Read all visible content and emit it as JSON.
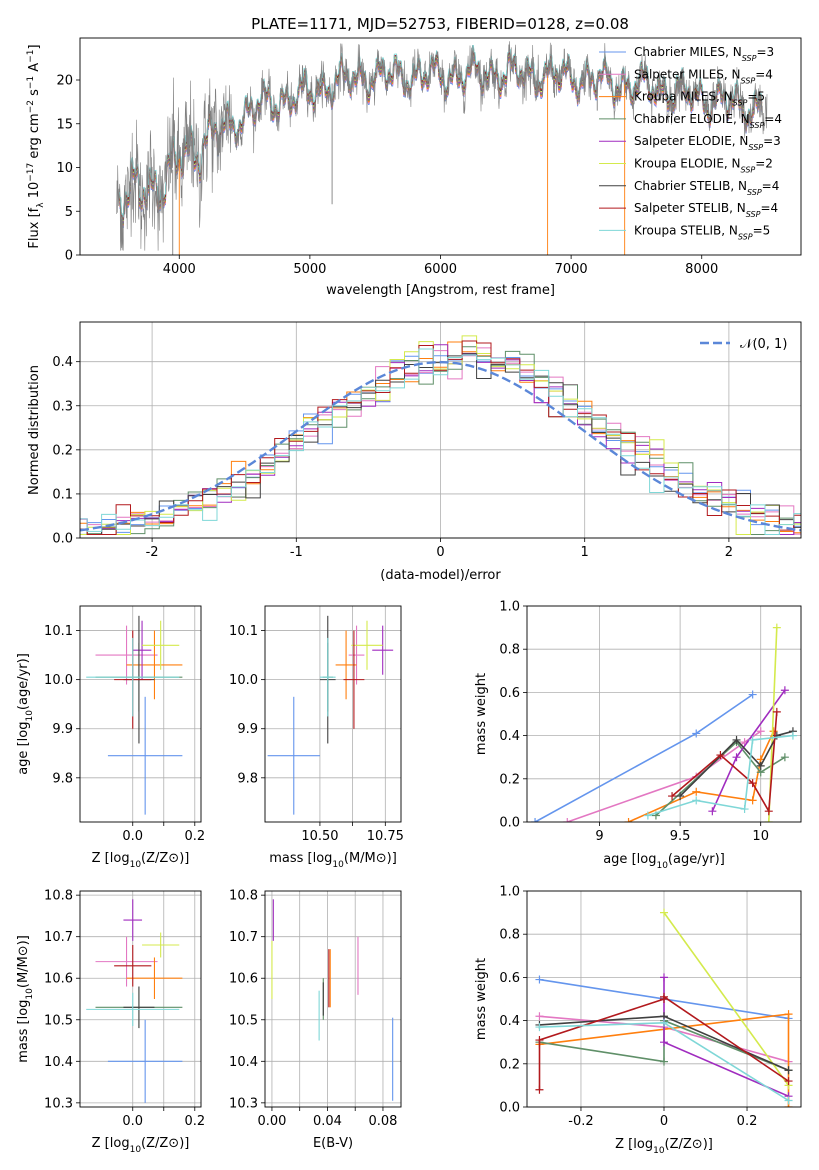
{
  "figure_title": "PLATE=1171, MJD=52753, FIBERID=0128, z=0.08",
  "colors": {
    "Chabrier MILES": "#6495ed",
    "Salpeter MILES": "#e377c2",
    "Kroupa MILES": "#ff7f0e",
    "Chabrier ELODIE": "#5f8f68",
    "Salpeter ELODIE": "#a02cbf",
    "Kroupa ELODIE": "#d4ea4c",
    "Chabrier STELIB": "#404040",
    "Salpeter STELIB": "#b2191d",
    "Kroupa STELIB": "#7fd7d7",
    "data": "#808080",
    "normal": "#5b87d8"
  },
  "chart_data": [
    {
      "id": "spectrum",
      "type": "line",
      "title": "PLATE=1171, MJD=52753, FIBERID=0128, z=0.08",
      "xlabel": "wavelength [Angstrom, rest frame]",
      "ylabel": "Flux [f_λ 10^-17 erg cm^-2 s^-1 A^-1]",
      "xlim": [
        3240,
        8760
      ],
      "ylim": [
        0,
        24.8
      ],
      "xticks": [
        4000,
        5000,
        6000,
        7000,
        8000
      ],
      "yticks": [
        0,
        5,
        10,
        15,
        20
      ],
      "grid": false,
      "legend_position": "right",
      "legend": [
        {
          "base": "Chabrier MILES, N",
          "sub": "SSP",
          "tail": "=3"
        },
        {
          "base": "Salpeter MILES, N",
          "sub": "SSP",
          "tail": "=4"
        },
        {
          "base": "Kroupa MILES, N",
          "sub": "SSP",
          "tail": "=5"
        },
        {
          "base": "Chabrier ELODIE, N",
          "sub": "SSP",
          "tail": "=4"
        },
        {
          "base": "Salpeter ELODIE, N",
          "sub": "SSP",
          "tail": "=3"
        },
        {
          "base": "Kroupa ELODIE, N",
          "sub": "SSP",
          "tail": "=2"
        },
        {
          "base": "Chabrier STELIB, N",
          "sub": "SSP",
          "tail": "=4"
        },
        {
          "base": "Salpeter STELIB, N",
          "sub": "SSP",
          "tail": "=4"
        },
        {
          "base": "Kroupa STELIB, N",
          "sub": "SSP",
          "tail": "=5"
        }
      ],
      "continuum": [
        [
          3500,
          6.0
        ],
        [
          3700,
          7.5
        ],
        [
          3900,
          8.5
        ],
        [
          4000,
          11.0
        ],
        [
          4300,
          14.0
        ],
        [
          4600,
          17.0
        ],
        [
          5000,
          18.5
        ],
        [
          5200,
          19.8
        ],
        [
          5500,
          20.5
        ],
        [
          6000,
          20.5
        ],
        [
          6500,
          20.8
        ],
        [
          7000,
          20.3
        ],
        [
          7400,
          19.5
        ],
        [
          7600,
          19.2
        ],
        [
          8000,
          18.0
        ],
        [
          8400,
          16.8
        ]
      ],
      "noise_amplitude": 2.0,
      "model_x_range": [
        3540,
        8460
      ],
      "data_x_range": [
        3520,
        8500
      ],
      "drops": [
        [
          3950,
          0
        ],
        [
          4000,
          0
        ],
        [
          5170,
          5.8
        ],
        [
          6820,
          0
        ],
        [
          7200,
          16.5
        ],
        [
          7410,
          0
        ]
      ]
    },
    {
      "id": "residuals",
      "type": "histogram",
      "xlabel": "(data-model)/error",
      "ylabel": "Normed distribution",
      "xlim": [
        -2.5,
        2.5
      ],
      "ylim": [
        0,
        0.49
      ],
      "xticks": [
        -2,
        -1,
        0,
        1,
        2
      ],
      "yticks": [
        0.0,
        0.1,
        0.2,
        0.3,
        0.4
      ],
      "grid": true,
      "bin_width": 0.1,
      "legend_position": "upper right",
      "normal_curve": {
        "label": "𝒩(0, 1)",
        "mean": 0,
        "sigma": 1
      }
    },
    {
      "id": "age-vs-Z",
      "type": "errorbar",
      "xlabel": "Z [log10(Z/Z⊙)]",
      "ylabel": "age [log10(age/yr)]",
      "xlim": [
        -0.17,
        0.22
      ],
      "ylim": [
        9.71,
        10.15
      ],
      "xticks": [
        0.0,
        0.1,
        0.2
      ],
      "xtick_labels": [
        "0.0",
        "",
        "0.2"
      ],
      "yticks": [
        9.8,
        9.9,
        10.0,
        10.1
      ],
      "grid": true,
      "points": [
        {
          "model": "Chabrier MILES",
          "x": 0.04,
          "xerr": 0.12,
          "y": 9.845,
          "yerr": 0.12
        },
        {
          "model": "Salpeter MILES",
          "x": -0.02,
          "xerr": 0.1,
          "y": 10.05,
          "yerr": 0.06
        },
        {
          "model": "Kroupa MILES",
          "x": 0.07,
          "xerr": 0.09,
          "y": 10.03,
          "yerr": 0.07
        },
        {
          "model": "Chabrier ELODIE",
          "x": 0.02,
          "xerr": 0.14,
          "y": 10.005,
          "yerr": 0.07
        },
        {
          "model": "Salpeter ELODIE",
          "x": 0.03,
          "xerr": 0.03,
          "y": 10.06,
          "yerr": 0.06
        },
        {
          "model": "Kroupa ELODIE",
          "x": 0.09,
          "xerr": 0.06,
          "y": 10.07,
          "yerr": 0.05
        },
        {
          "model": "Chabrier STELIB",
          "x": 0.02,
          "xerr": 0.05,
          "y": 10.0,
          "yerr": 0.13
        },
        {
          "model": "Salpeter STELIB",
          "x": 0.0,
          "xerr": 0.06,
          "y": 10.0,
          "yerr": 0.1
        },
        {
          "model": "Kroupa STELIB",
          "x": 0.0,
          "xerr": 0.15,
          "y": 10.005,
          "yerr": 0.08
        }
      ]
    },
    {
      "id": "age-vs-mass",
      "type": "errorbar",
      "xlabel": "mass [log10(M/M⊙)]",
      "ylabel": "",
      "xlim": [
        10.29,
        10.81
      ],
      "ylim": [
        9.71,
        10.15
      ],
      "xticks": [
        10.5,
        10.625,
        10.75
      ],
      "xtick_labels": [
        "10.50",
        "",
        "10.75"
      ],
      "yticks": [
        9.8,
        9.9,
        10.0,
        10.1
      ],
      "grid": true,
      "points": [
        {
          "model": "Chabrier MILES",
          "x": 10.4,
          "xerr": 0.1,
          "y": 9.845,
          "yerr": 0.12
        },
        {
          "model": "Salpeter MILES",
          "x": 10.64,
          "xerr": 0.03,
          "y": 10.05,
          "yerr": 0.06
        },
        {
          "model": "Kroupa MILES",
          "x": 10.6,
          "xerr": 0.04,
          "y": 10.03,
          "yerr": 0.07
        },
        {
          "model": "Chabrier ELODIE",
          "x": 10.53,
          "xerr": 0.02,
          "y": 10.005,
          "yerr": 0.07
        },
        {
          "model": "Salpeter ELODIE",
          "x": 10.74,
          "xerr": 0.04,
          "y": 10.06,
          "yerr": 0.05
        },
        {
          "model": "Kroupa ELODIE",
          "x": 10.68,
          "xerr": 0.06,
          "y": 10.07,
          "yerr": 0.05
        },
        {
          "model": "Chabrier STELIB",
          "x": 10.53,
          "xerr": 0.03,
          "y": 10.0,
          "yerr": 0.13
        },
        {
          "model": "Salpeter STELIB",
          "x": 10.63,
          "xerr": 0.04,
          "y": 10.0,
          "yerr": 0.1
        },
        {
          "model": "Kroupa STELIB",
          "x": 10.53,
          "xerr": 0.03,
          "y": 10.005,
          "yerr": 0.08
        }
      ]
    },
    {
      "id": "weight-vs-age",
      "type": "line",
      "xlabel": "age [log10(age/yr)]",
      "ylabel": "mass weight",
      "xlim": [
        8.55,
        10.25
      ],
      "ylim": [
        0,
        1.0
      ],
      "xticks": [
        9.0,
        9.5,
        10.0
      ],
      "yticks": [
        0.0,
        0.2,
        0.4,
        0.6,
        0.8,
        1.0
      ],
      "grid": true,
      "series": [
        {
          "model": "Chabrier MILES",
          "x": [
            8.6,
            9.6,
            9.95
          ],
          "y": [
            0.0,
            0.41,
            0.59
          ]
        },
        {
          "model": "Salpeter MILES",
          "x": [
            8.8,
            9.6,
            9.9,
            10.0
          ],
          "y": [
            0.0,
            0.21,
            0.37,
            0.42
          ]
        },
        {
          "model": "Kroupa MILES",
          "x": [
            9.18,
            9.6,
            9.95,
            10.0,
            10.08
          ],
          "y": [
            0.0,
            0.14,
            0.1,
            0.29,
            0.42
          ]
        },
        {
          "model": "Chabrier ELODIE",
          "x": [
            9.35,
            9.85,
            10.0,
            10.15
          ],
          "y": [
            0.03,
            0.37,
            0.23,
            0.3
          ]
        },
        {
          "model": "Salpeter ELODIE",
          "x": [
            9.7,
            9.85,
            10.15
          ],
          "y": [
            0.05,
            0.3,
            0.61
          ]
        },
        {
          "model": "Kroupa ELODIE",
          "x": [
            10.05,
            10.1
          ],
          "y": [
            0.0,
            0.9
          ]
        },
        {
          "model": "Chabrier STELIB",
          "x": [
            9.5,
            9.85,
            10.0,
            10.1,
            10.2
          ],
          "y": [
            0.12,
            0.38,
            0.26,
            0.4,
            0.42
          ]
        },
        {
          "model": "Salpeter STELIB",
          "x": [
            9.45,
            9.75,
            9.95,
            10.05,
            10.1
          ],
          "y": [
            0.12,
            0.31,
            0.18,
            0.05,
            0.51
          ]
        },
        {
          "model": "Kroupa STELIB",
          "x": [
            9.3,
            9.6,
            9.9,
            9.95,
            10.2
          ],
          "y": [
            0.03,
            0.1,
            0.06,
            0.38,
            0.4
          ]
        }
      ]
    },
    {
      "id": "mass-vs-Z",
      "type": "errorbar",
      "xlabel": "Z [log10(Z/Z⊙)]",
      "ylabel": "mass [log10(M/M⊙)]",
      "xlim": [
        -0.17,
        0.22
      ],
      "ylim": [
        10.29,
        10.81
      ],
      "xticks": [
        0.0,
        0.1,
        0.2
      ],
      "xtick_labels": [
        "0.0",
        "",
        "0.2"
      ],
      "yticks": [
        10.3,
        10.4,
        10.5,
        10.6,
        10.7,
        10.8
      ],
      "grid": true,
      "points": [
        {
          "model": "Chabrier MILES",
          "x": 0.04,
          "xerr": 0.12,
          "y": 10.4,
          "yerr": 0.1
        },
        {
          "model": "Salpeter MILES",
          "x": -0.02,
          "xerr": 0.1,
          "y": 10.64,
          "yerr": 0.06
        },
        {
          "model": "Kroupa MILES",
          "x": 0.07,
          "xerr": 0.09,
          "y": 10.6,
          "yerr": 0.05
        },
        {
          "model": "Chabrier ELODIE",
          "x": 0.02,
          "xerr": 0.14,
          "y": 10.53,
          "yerr": 0.05
        },
        {
          "model": "Salpeter ELODIE",
          "x": 0.0,
          "xerr": 0.03,
          "y": 10.74,
          "yerr": 0.05
        },
        {
          "model": "Kroupa ELODIE",
          "x": 0.09,
          "xerr": 0.06,
          "y": 10.68,
          "yerr": 0.03
        },
        {
          "model": "Chabrier STELIB",
          "x": 0.02,
          "xerr": 0.05,
          "y": 10.53,
          "yerr": 0.05
        },
        {
          "model": "Salpeter STELIB",
          "x": 0.0,
          "xerr": 0.06,
          "y": 10.63,
          "yerr": 0.05
        },
        {
          "model": "Kroupa STELIB",
          "x": 0.0,
          "xerr": 0.15,
          "y": 10.525,
          "yerr": 0.04
        }
      ]
    },
    {
      "id": "mass-vs-EBV",
      "type": "errorbar",
      "xlabel": "E(B-V)",
      "ylabel": "",
      "xlim": [
        -0.005,
        0.093
      ],
      "ylim": [
        10.29,
        10.81
      ],
      "xticks": [
        0.0,
        0.02,
        0.04,
        0.06,
        0.08
      ],
      "xtick_labels": [
        "0.00",
        "",
        "0.04",
        "",
        "0.08"
      ],
      "yticks": [
        10.3,
        10.4,
        10.5,
        10.6,
        10.7,
        10.8
      ],
      "grid": true,
      "points": [
        {
          "model": "Chabrier MILES",
          "x": 0.087,
          "xerr": 0,
          "y": 10.405,
          "yerr": 0.1
        },
        {
          "model": "Salpeter MILES",
          "x": 0.062,
          "xerr": 0,
          "y": 10.63,
          "yerr": 0.07
        },
        {
          "model": "Kroupa MILES",
          "x": 0.042,
          "xerr": 0,
          "y": 10.6,
          "yerr": 0.07
        },
        {
          "model": "Chabrier ELODIE",
          "x": 0.037,
          "xerr": 0,
          "y": 10.55,
          "yerr": 0.05
        },
        {
          "model": "Salpeter ELODIE",
          "x": 0.001,
          "xerr": 0,
          "y": 10.74,
          "yerr": 0.05
        },
        {
          "model": "Kroupa ELODIE",
          "x": 0.0,
          "xerr": 0,
          "y": 10.62,
          "yerr": 0.07
        },
        {
          "model": "Chabrier STELIB",
          "x": 0.037,
          "xerr": 0,
          "y": 10.55,
          "yerr": 0.04
        },
        {
          "model": "Salpeter STELIB",
          "x": 0.041,
          "xerr": 0,
          "y": 10.6,
          "yerr": 0.07
        },
        {
          "model": "Kroupa STELIB",
          "x": 0.034,
          "xerr": 0,
          "y": 10.51,
          "yerr": 0.06
        }
      ]
    },
    {
      "id": "weight-vs-Z",
      "type": "line",
      "xlabel": "Z [log10(Z/Z⊙)]",
      "ylabel": "mass weight",
      "xlim": [
        -0.33,
        0.33
      ],
      "ylim": [
        0,
        1.0
      ],
      "xticks": [
        -0.2,
        0.0,
        0.2
      ],
      "yticks": [
        0.0,
        0.2,
        0.4,
        0.6,
        0.8,
        1.0
      ],
      "grid": true,
      "series": [
        {
          "model": "Chabrier MILES",
          "x": [
            -0.3,
            0.3
          ],
          "y": [
            0.59,
            0.41
          ]
        },
        {
          "model": "Salpeter MILES",
          "x": [
            -0.3,
            0.0,
            0.3
          ],
          "y": [
            0.42,
            0.37,
            0.21
          ]
        },
        {
          "model": "Kroupa MILES",
          "x": [
            -0.3,
            0.3,
            0.3
          ],
          "y": [
            0.29,
            0.43,
            0.0
          ]
        },
        {
          "model": "Chabrier ELODIE",
          "x": [
            -0.3,
            0.0,
            0.0,
            0.3
          ],
          "y": [
            0.3,
            0.21,
            0.4,
            0.17
          ]
        },
        {
          "model": "Salpeter ELODIE",
          "x": [
            0.0,
            0.0,
            0.3
          ],
          "y": [
            0.6,
            0.3,
            0.05
          ]
        },
        {
          "model": "Kroupa ELODIE",
          "x": [
            0.0,
            0.3
          ],
          "y": [
            0.9,
            0.1
          ]
        },
        {
          "model": "Chabrier STELIB",
          "x": [
            -0.3,
            0.0,
            0.3
          ],
          "y": [
            0.38,
            0.42,
            0.17
          ]
        },
        {
          "model": "Salpeter STELIB",
          "x": [
            -0.3,
            -0.3,
            0.0,
            0.0,
            0.3
          ],
          "y": [
            0.08,
            0.31,
            0.5,
            0.51,
            0.12
          ]
        },
        {
          "model": "Kroupa STELIB",
          "x": [
            -0.3,
            0.0,
            0.3
          ],
          "y": [
            0.37,
            0.39,
            0.03
          ]
        }
      ]
    }
  ]
}
